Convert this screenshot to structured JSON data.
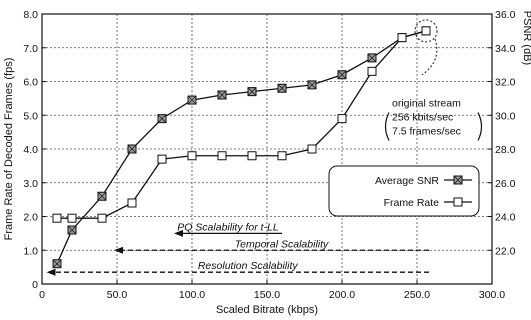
{
  "chart_data": {
    "type": "line",
    "xlabel": "Scaled Bitrate (kbps)",
    "ylabel_left": "Frame Rate of Decoded Frames (fps)",
    "ylabel_right": "PSNR (dB)",
    "xlim": [
      0,
      300
    ],
    "ylim_left": [
      0,
      8
    ],
    "ylim_right": [
      20,
      36
    ],
    "grid": true,
    "x_ticks": [
      "0",
      "50.0",
      "100.0",
      "150.0",
      "200.0",
      "250.0",
      "300.0"
    ],
    "y_left_ticks": [
      "0",
      "1.0",
      "2.0",
      "3.0",
      "4.0",
      "5.0",
      "6.0",
      "7.0",
      "8.0"
    ],
    "y_right_ticks": [
      "22.0",
      "24.0",
      "26.0",
      "28.0",
      "30.0",
      "32.0",
      "34.0",
      "36.0"
    ],
    "legend_position": "right-middle",
    "series": [
      {
        "name": "Average SNR",
        "axis": "right",
        "marker": "filled-square",
        "x": [
          10,
          20,
          40,
          60,
          80,
          100,
          120,
          140,
          160,
          180,
          200,
          220,
          240,
          256
        ],
        "y": [
          21.2,
          23.2,
          25.2,
          28.0,
          29.8,
          30.9,
          31.2,
          31.4,
          31.6,
          31.8,
          32.4,
          33.4,
          34.6,
          35.0
        ]
      },
      {
        "name": "Frame Rate",
        "axis": "left",
        "marker": "open-square",
        "x": [
          10,
          20,
          40,
          60,
          80,
          100,
          120,
          140,
          160,
          180,
          200,
          220,
          240,
          256
        ],
        "y": [
          1.95,
          1.95,
          1.95,
          2.4,
          3.7,
          3.8,
          3.8,
          3.8,
          3.8,
          4.0,
          4.9,
          6.3,
          7.3,
          7.5
        ]
      }
    ],
    "annotations": {
      "original_stream": [
        "original stream",
        "256 kbits/sec",
        "7.5 frames/sec"
      ],
      "arrows": [
        {
          "label": "PQ Scalability for t-LL",
          "from_x": 160,
          "to_x": 88,
          "y": 1.5,
          "dashed": false
        },
        {
          "label": "Temporal Scalability",
          "from_x": 258,
          "to_x": 48,
          "y": 1.0,
          "dashed": true
        },
        {
          "label": "Resolution Scalability",
          "from_x": 258,
          "to_x": 3,
          "y": 0.35,
          "dashed": true
        }
      ]
    }
  }
}
